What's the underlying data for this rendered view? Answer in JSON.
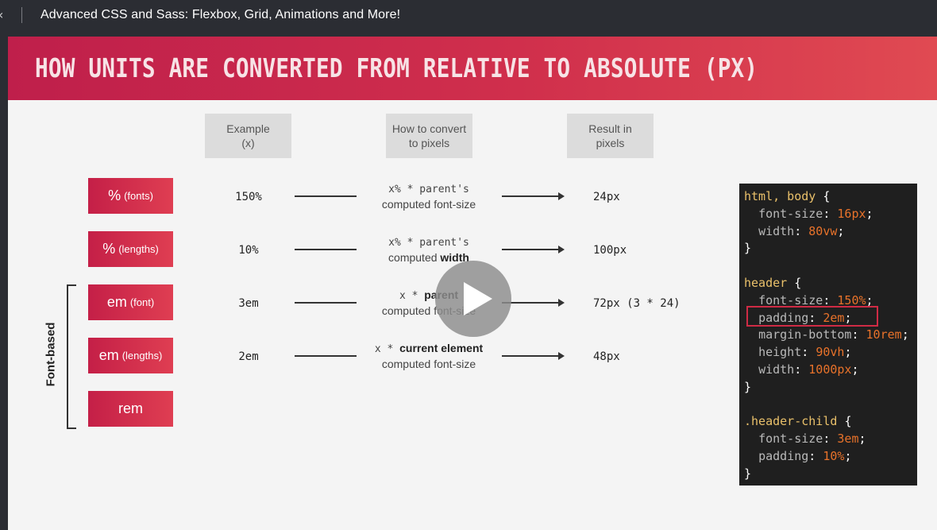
{
  "topbar": {
    "back_glyph": "‹",
    "title": "Advanced CSS and Sass: Flexbox, Grid, Animations and More!"
  },
  "slide": {
    "heading": "HOW UNITS ARE CONVERTED FROM RELATIVE TO ABSOLUTE (PX)",
    "columns": {
      "example": [
        "Example",
        "(x)"
      ],
      "how": [
        "How to convert",
        "to pixels"
      ],
      "result": [
        "Result in",
        "pixels"
      ]
    },
    "rows": [
      {
        "unit": "%",
        "unit_sub": "(fonts)",
        "example": "150%",
        "how_pre": "x% * parent's",
        "how_post": "computed font-size",
        "how_bold": "",
        "result": "24px"
      },
      {
        "unit": "%",
        "unit_sub": "(lengths)",
        "example": "10%",
        "how_pre": "x% * parent's",
        "how_post": "computed ",
        "how_bold": "width",
        "result": "100px"
      },
      {
        "unit": "em",
        "unit_sub": "(font)",
        "example": "3em",
        "how_pre": "x * ",
        "how_pre_bold": "parent",
        "how_post": "computed font-size",
        "result": "72px (3 * 24)"
      },
      {
        "unit": "em",
        "unit_sub": "(lengths)",
        "example": "2em",
        "how_pre": "x * ",
        "how_pre_bold": "current element",
        "how_post": "computed font-size",
        "result": "48px"
      },
      {
        "unit": "rem",
        "unit_sub": ""
      }
    ],
    "group_label": "Font-based",
    "code": {
      "block1": {
        "selector": "html, body",
        "decls": [
          [
            "font-size",
            "16px"
          ],
          [
            "width",
            "80vw"
          ]
        ]
      },
      "block2": {
        "selector": "header",
        "decls": [
          [
            "font-size",
            "150%"
          ],
          [
            "padding",
            "2em"
          ],
          [
            "margin-bottom",
            "10rem"
          ],
          [
            "height",
            "90vh"
          ],
          [
            "width",
            "1000px"
          ]
        ]
      },
      "block3": {
        "selector": ".header-child",
        "decls": [
          [
            "font-size",
            "3em"
          ],
          [
            "padding",
            "10%"
          ]
        ]
      },
      "open_brace": "{",
      "close_brace": "}",
      "highlight_color": "#cf2b45"
    }
  },
  "video": {
    "play_icon": "play-icon"
  },
  "colors": {
    "banner_start": "#bf1f4b",
    "banner_end": "#e04a52",
    "unit_box": "#d02f4c",
    "code_bg": "#1f1f1f",
    "code_value": "#e8722a",
    "code_selector": "#e9c06a"
  }
}
